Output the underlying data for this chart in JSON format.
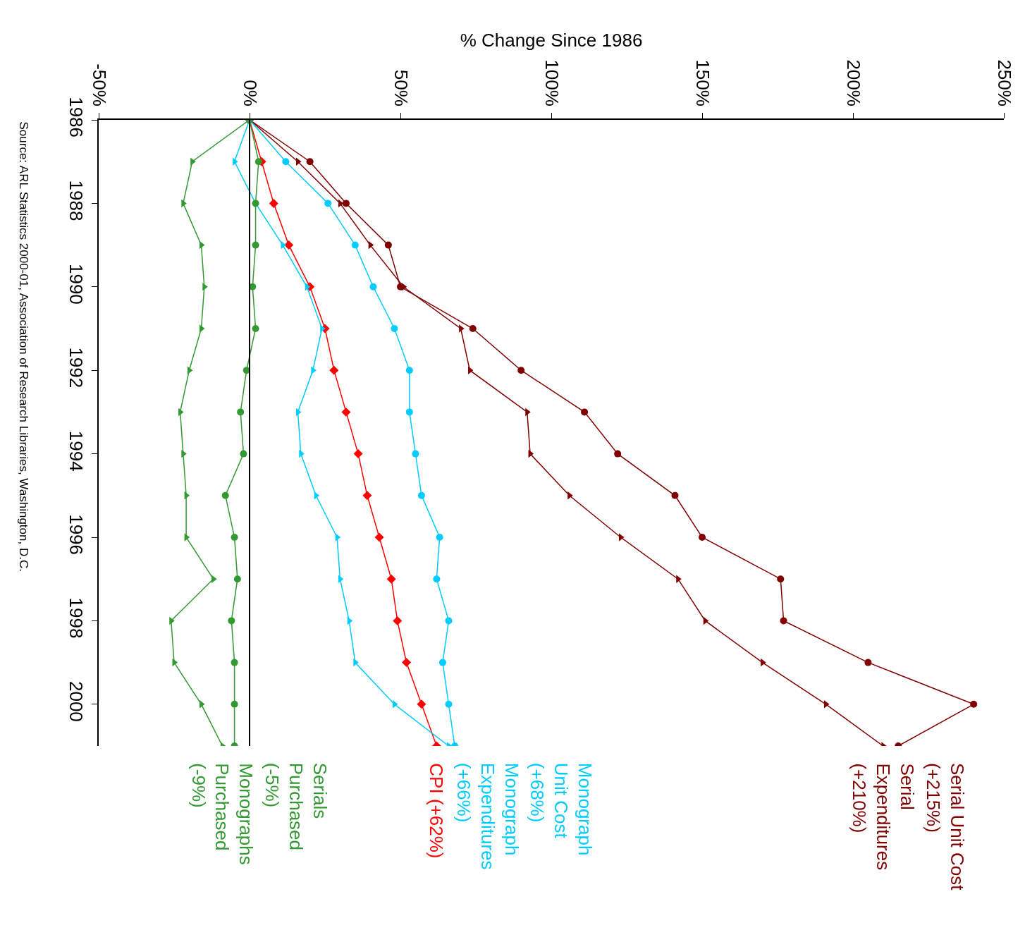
{
  "chart_data": {
    "type": "line",
    "orientation": "horizontal",
    "xlabel": "% Change Since 1986",
    "x": [
      1986,
      1987,
      1988,
      1989,
      1990,
      1991,
      1992,
      1993,
      1994,
      1995,
      1996,
      1997,
      1998,
      1999,
      2000,
      2001
    ],
    "series": [
      {
        "name": "Serial Unit Cost\n(+215%)",
        "color": "#800000",
        "marker": "circle",
        "values": [
          0,
          20,
          32,
          46,
          50,
          74,
          90,
          111,
          122,
          141,
          150,
          176,
          177,
          205,
          240,
          215
        ]
      },
      {
        "name": "Serial\nExpenditures\n(+210%)",
        "color": "#800000",
        "marker": "triangle",
        "values": [
          0,
          16,
          30,
          40,
          51,
          70,
          73,
          92,
          93,
          106,
          123,
          142,
          151,
          170,
          191,
          210
        ]
      },
      {
        "name": "CPI (+62%)",
        "color": "#ff0000",
        "marker": "diamond",
        "values": [
          0,
          4,
          8,
          13,
          20,
          25,
          28,
          32,
          36,
          39,
          43,
          47,
          49,
          52,
          57,
          62
        ]
      },
      {
        "name": "Monograph\nUnit Cost\n(+68%)",
        "color": "#00ccff",
        "marker": "circle",
        "values": [
          0,
          12,
          26,
          35,
          41,
          48,
          53,
          53,
          55,
          57,
          63,
          62,
          66,
          64,
          66,
          68
        ]
      },
      {
        "name": "Monograph\nExpenditures\n(+66%)",
        "color": "#00ccff",
        "marker": "triangle",
        "values": [
          0,
          -5,
          2,
          11,
          19,
          24,
          21,
          16,
          17,
          22,
          29,
          30,
          33,
          35,
          48,
          66
        ]
      },
      {
        "name": "Serials\nPurchased\n(-5%)",
        "color": "#339933",
        "marker": "circle",
        "values": [
          0,
          3,
          2,
          2,
          1,
          2,
          -1,
          -3,
          -2,
          -8,
          -5,
          -4,
          -6,
          -5,
          -5,
          -5
        ]
      },
      {
        "name": "Monographs\nPurchased\n(-9%)",
        "color": "#339933",
        "marker": "triangle",
        "values": [
          0,
          -19,
          -22,
          -16,
          -15,
          -16,
          -20,
          -23,
          -22,
          -21,
          -21,
          -12,
          -26,
          -25,
          -16,
          -9
        ]
      }
    ],
    "xlim": [
      -50,
      250
    ],
    "xticks": [
      {
        "value": -50,
        "label": "-50%"
      },
      {
        "value": 0,
        "label": "0%"
      },
      {
        "value": 50,
        "label": "50%"
      },
      {
        "value": 100,
        "label": "100%"
      },
      {
        "value": 150,
        "label": "150%"
      },
      {
        "value": 200,
        "label": "200%"
      },
      {
        "value": 250,
        "label": "250%"
      }
    ],
    "ylim": [
      2001,
      1986
    ],
    "yticks": [
      1986,
      1988,
      1990,
      1992,
      1994,
      1996,
      1998,
      2000
    ],
    "ref_lines": [
      {
        "axis": "x",
        "value": 0,
        "color": "#000000"
      }
    ],
    "grid": false,
    "legend": false,
    "line_style": "solid",
    "annotations": [
      "Source: ARL Statistics 2000-01, Association of Research Libraries, Washington, D.C."
    ]
  }
}
